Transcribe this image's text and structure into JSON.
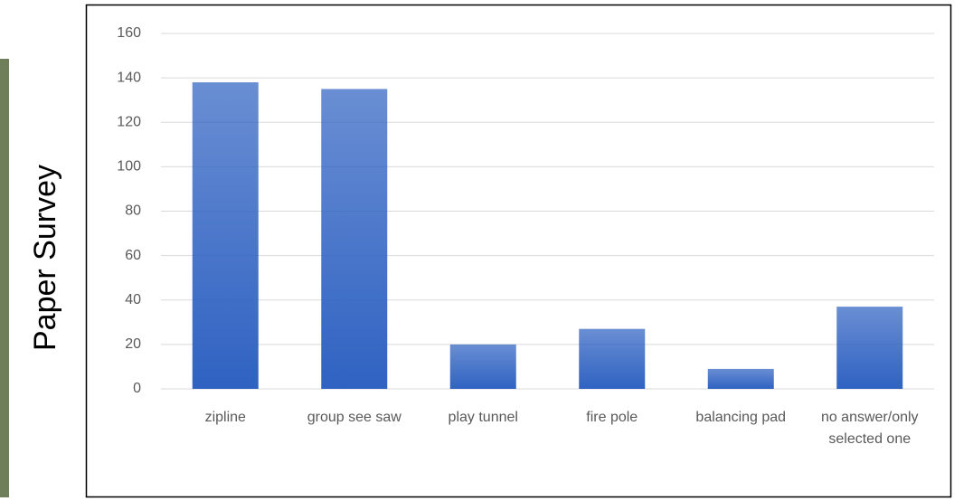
{
  "chart_data": {
    "type": "bar",
    "ylabel": "Paper Survey",
    "categories": [
      "zipline",
      "group see saw",
      "play tunnel",
      "fire pole",
      "balancing pad",
      "no answer/only selected one"
    ],
    "values": [
      138,
      135,
      20,
      27,
      9,
      37
    ],
    "color": "#2f62c2",
    "ylim": [
      0,
      160
    ],
    "yticks": [
      0,
      20,
      40,
      60,
      80,
      100,
      120,
      140,
      160
    ],
    "grid": true
  }
}
